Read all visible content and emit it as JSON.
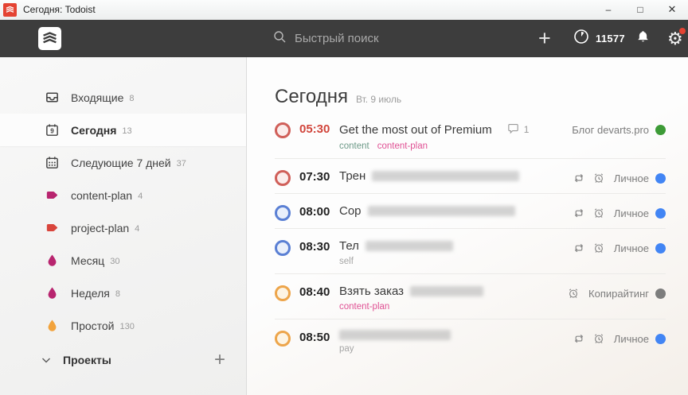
{
  "window": {
    "title": "Сегодня: Todoist",
    "controls": {
      "minimize": "–",
      "maximize": "□",
      "close": "✕"
    }
  },
  "header": {
    "search_placeholder": "Быстрый поиск",
    "add_label": "+",
    "karma_count": "11577",
    "accent_color": "#e44332"
  },
  "sidebar": {
    "items": [
      {
        "label": "Входящие",
        "count": "8",
        "icon": "inbox-icon",
        "selected": false
      },
      {
        "label": "Сегодня",
        "count": "13",
        "icon": "calendar-today-icon",
        "day": "9",
        "selected": true
      },
      {
        "label": "Следующие 7 дней",
        "count": "37",
        "icon": "calendar-week-icon",
        "selected": false
      },
      {
        "label": "content-plan",
        "count": "4",
        "icon": "label-icon",
        "color": "#b8256f",
        "selected": false
      },
      {
        "label": "project-plan",
        "count": "4",
        "icon": "label-icon",
        "color": "#d9453c",
        "selected": false
      },
      {
        "label": "Месяц",
        "count": "30",
        "icon": "drop-icon",
        "color": "#b8256f",
        "selected": false
      },
      {
        "label": "Неделя",
        "count": "8",
        "icon": "drop-icon",
        "color": "#b8256f",
        "selected": false
      },
      {
        "label": "Простой",
        "count": "130",
        "icon": "drop-icon",
        "color": "#f2a33c",
        "selected": false
      }
    ],
    "projects_header": {
      "label": "Проекты",
      "add_label": "+"
    }
  },
  "main": {
    "title": "Сегодня",
    "date": "Вт. 9 июль",
    "tasks": [
      {
        "time": "05:30",
        "time_color": "#d1453b",
        "circle": {
          "border": "#d0605a",
          "fill": "#fbedec"
        },
        "title": "Get the most out of Premium",
        "redacted_width": 0,
        "comments": "1",
        "labels": [
          {
            "text": "content",
            "color": "#6d9a88"
          },
          {
            "text": "content-plan",
            "color": "#e05194"
          }
        ],
        "meta_icons": [],
        "project": {
          "name": "Блог devarts.pro",
          "dot_color": "#3d9b37"
        }
      },
      {
        "time": "07:30",
        "time_color": "#222222",
        "circle": {
          "border": "#d0605a",
          "fill": "#fbedec"
        },
        "title": "Трен",
        "redacted_width": 185,
        "comments": "",
        "labels": [],
        "meta_icons": [
          "repeat",
          "alarm"
        ],
        "project": {
          "name": "Личное",
          "dot_color": "#4285f4"
        }
      },
      {
        "time": "08:00",
        "time_color": "#222222",
        "circle": {
          "border": "#5b80d4",
          "fill": "#eaf0fb"
        },
        "title": "Сор",
        "redacted_width": 185,
        "comments": "",
        "labels": [],
        "meta_icons": [
          "repeat",
          "alarm"
        ],
        "project": {
          "name": "Личное",
          "dot_color": "#4285f4"
        }
      },
      {
        "time": "08:30",
        "time_color": "#222222",
        "circle": {
          "border": "#5b80d4",
          "fill": "#eaf0fb"
        },
        "title": "Тел",
        "redacted_width": 110,
        "comments": "",
        "labels": [
          {
            "text": "self",
            "color": "#a5a5a5"
          }
        ],
        "meta_icons": [
          "repeat",
          "alarm"
        ],
        "project": {
          "name": "Личное",
          "dot_color": "#4285f4"
        }
      },
      {
        "time": "08:40",
        "time_color": "#222222",
        "circle": {
          "border": "#eda54b",
          "fill": "#fdf4e4"
        },
        "title": "Взять заказ",
        "redacted_width": 92,
        "comments": "",
        "labels": [
          {
            "text": "content-plan",
            "color": "#e05194"
          }
        ],
        "meta_icons": [
          "alarm"
        ],
        "project": {
          "name": "Копирайтинг",
          "dot_color": "#7d7d7d"
        }
      },
      {
        "time": "08:50",
        "time_color": "#222222",
        "circle": {
          "border": "#eda54b",
          "fill": "#fdf4e4"
        },
        "title": "",
        "redacted_width": 140,
        "comments": "",
        "labels": [
          {
            "text": "pay",
            "color": "#a5a5a5"
          }
        ],
        "meta_icons": [
          "repeat",
          "alarm"
        ],
        "project": {
          "name": "Личное",
          "dot_color": "#4285f4"
        }
      }
    ]
  }
}
